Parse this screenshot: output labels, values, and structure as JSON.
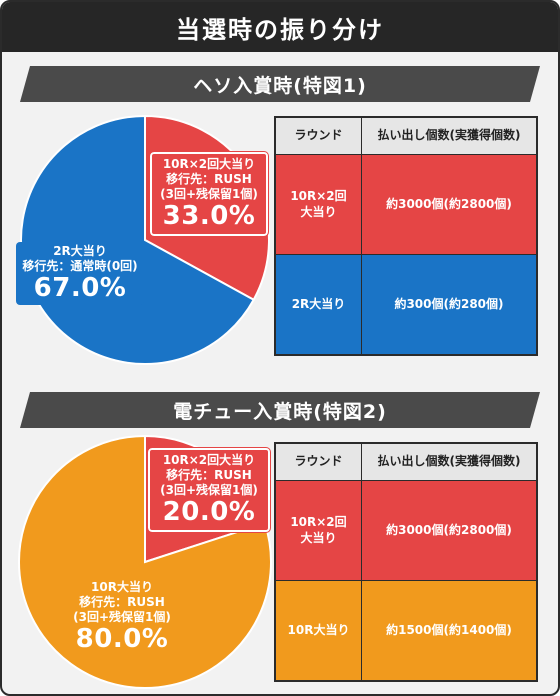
{
  "title": "当選時の振り分け",
  "colors": {
    "red": "#e54545",
    "blue": "#1a74c6",
    "orange": "#f19a1d",
    "dark": "#262626"
  },
  "chart_data": [
    {
      "type": "pie",
      "title": "ヘソ入賞時(特図1)",
      "slices": [
        {
          "lines": [
            "10R×2回大当り",
            "移行先：RUSH",
            "(3回+残保留1個)"
          ],
          "value": 33.0,
          "label": "33.0%",
          "color": "#e54545"
        },
        {
          "lines": [
            "2R大当り",
            "移行先：通常時(0回)"
          ],
          "value": 67.0,
          "label": "67.0%",
          "color": "#1a74c6"
        }
      ],
      "table": {
        "headers": [
          "ラウンド",
          "払い出し個数(実獲得個数)"
        ],
        "rows": [
          {
            "round": "10R×2回\n大当り",
            "payout": "約3000個(約2800個)",
            "color": "#e54545"
          },
          {
            "round": "2R大当り",
            "payout": "約300個(約280個)",
            "color": "#1a74c6"
          }
        ]
      }
    },
    {
      "type": "pie",
      "title": "電チュー入賞時(特図2)",
      "slices": [
        {
          "lines": [
            "10R×2回大当り",
            "移行先：RUSH",
            "(3回+残保留1個)"
          ],
          "value": 20.0,
          "label": "20.0%",
          "color": "#e54545"
        },
        {
          "lines": [
            "10R大当り",
            "移行先：RUSH",
            "(3回+残保留1個)"
          ],
          "value": 80.0,
          "label": "80.0%",
          "color": "#f19a1d"
        }
      ],
      "table": {
        "headers": [
          "ラウンド",
          "払い出し個数(実獲得個数)"
        ],
        "rows": [
          {
            "round": "10R×2回\n大当り",
            "payout": "約3000個(約2800個)",
            "color": "#e54545"
          },
          {
            "round": "10R大当り",
            "payout": "約1500個(約1400個)",
            "color": "#f19a1d"
          }
        ]
      }
    }
  ]
}
